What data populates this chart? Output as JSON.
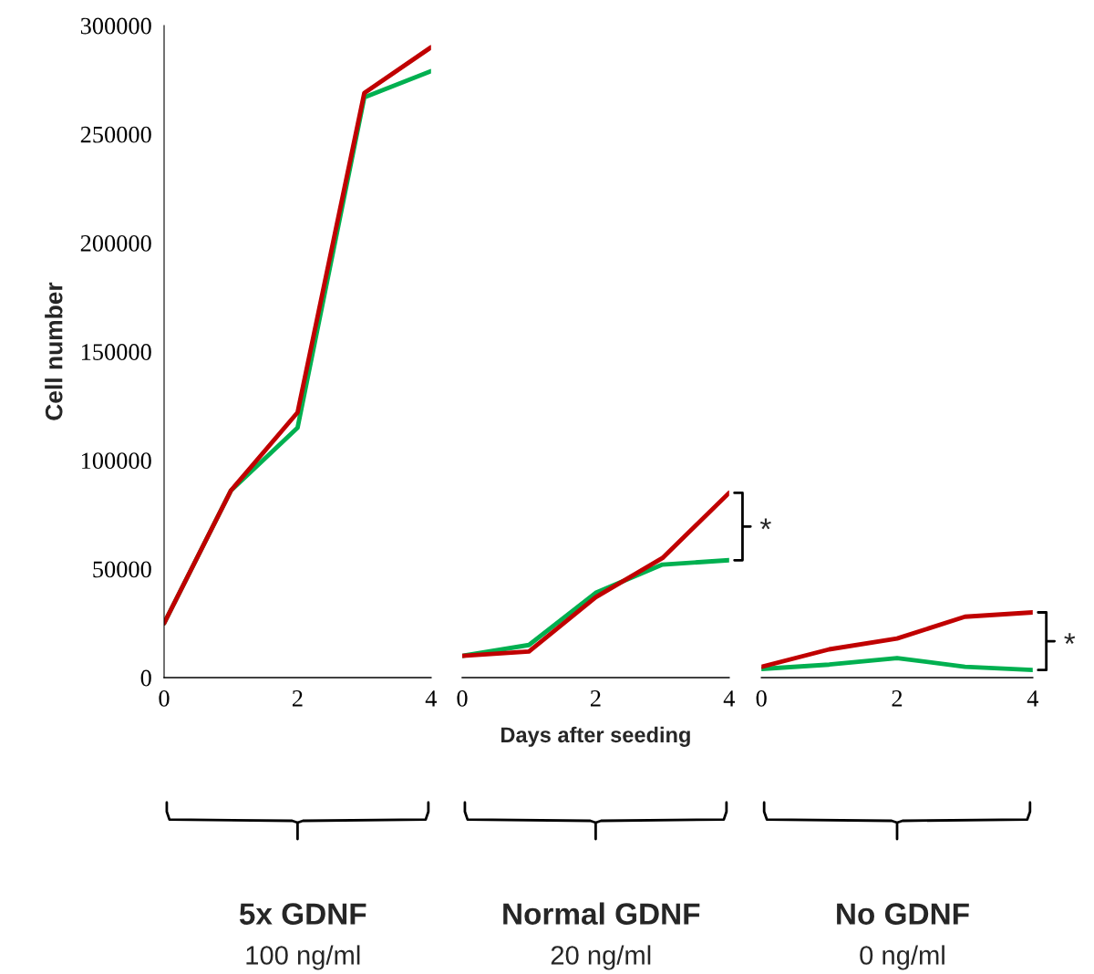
{
  "chart_data": [
    {
      "type": "line",
      "ylabel": "Cell number",
      "x": [
        0,
        1,
        2,
        3,
        4
      ],
      "xlim": [
        0,
        4
      ],
      "xticks": [
        0,
        2,
        4
      ],
      "ylim": [
        0,
        300000
      ],
      "yticks": [
        0,
        50000,
        100000,
        150000,
        200000,
        250000,
        300000
      ],
      "grid": false,
      "legend": false,
      "series": [
        {
          "color": "#00b050",
          "values": [
            25000,
            86000,
            115000,
            267000,
            279000
          ]
        },
        {
          "color": "#c00000",
          "values": [
            25000,
            86000,
            122000,
            269000,
            290000
          ]
        }
      ],
      "annotations": [
        "5x GDNF",
        "100 ng/ml"
      ]
    },
    {
      "type": "line",
      "xlabel": "Days after seeding",
      "x": [
        0,
        1,
        2,
        3,
        4
      ],
      "xlim": [
        0,
        4
      ],
      "xticks": [
        0,
        2,
        4
      ],
      "ylim": [
        0,
        300000
      ],
      "tick_labels": "x",
      "grid": false,
      "legend": false,
      "series": [
        {
          "color": "#00b050",
          "values": [
            10000,
            15000,
            39000,
            52000,
            54000
          ]
        },
        {
          "color": "#c00000",
          "values": [
            10000,
            12000,
            37000,
            55000,
            85000
          ]
        }
      ],
      "annotations": [
        "*",
        "Normal GDNF",
        "20 ng/ml"
      ]
    },
    {
      "type": "line",
      "x": [
        0,
        1,
        2,
        3,
        4
      ],
      "xlim": [
        0,
        4
      ],
      "xticks": [
        0,
        2,
        4
      ],
      "ylim": [
        0,
        300000
      ],
      "tick_labels": "x",
      "grid": false,
      "legend": false,
      "series": [
        {
          "color": "#00b050",
          "values": [
            4000,
            6000,
            9000,
            5000,
            3500
          ]
        },
        {
          "color": "#c00000",
          "values": [
            5000,
            13000,
            18000,
            28000,
            30000
          ]
        }
      ],
      "annotations": [
        "*",
        "No GDNF",
        "0 ng/ml"
      ]
    }
  ]
}
